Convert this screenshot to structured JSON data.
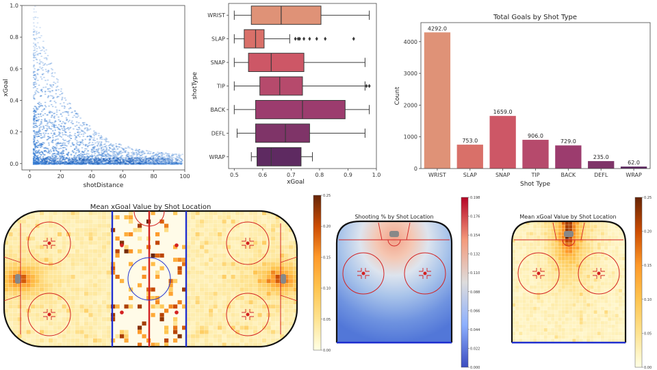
{
  "chart_data": [
    {
      "type": "scatter",
      "xlabel": "shotDistance",
      "ylabel": "xGoal",
      "xlim": [
        -5,
        100
      ],
      "ylim": [
        -0.04,
        1.0
      ],
      "xticks": [
        "0",
        "20",
        "40",
        "60",
        "80",
        "100"
      ],
      "yticks": [
        "0.0",
        "0.2",
        "0.4",
        "0.6",
        "0.8",
        "1.0"
      ],
      "color": "#3b7fd4",
      "description_of_density": "dense near distance 5-20 and xGoal 0-0.2, decaying with distance"
    },
    {
      "type": "bar",
      "subtype": "box",
      "xlabel": "xGoal",
      "ylabel": "shotType",
      "xlim": [
        0.48,
        1.0
      ],
      "xticks": [
        "0.5",
        "0.6",
        "0.7",
        "0.8",
        "0.9",
        "1.0"
      ],
      "categories": [
        "WRIST",
        "SLAP",
        "SNAP",
        "TIP",
        "BACK",
        "DEFL",
        "WRAP"
      ],
      "boxes": [
        {
          "name": "WRIST",
          "whislo": 0.5,
          "q1": 0.56,
          "med": 0.665,
          "q3": 0.805,
          "whishi": 0.975,
          "fliers": [],
          "color": "#df9277"
        },
        {
          "name": "SLAP",
          "whislo": 0.5,
          "q1": 0.535,
          "med": 0.575,
          "q3": 0.605,
          "whishi": 0.695,
          "fliers": [
            0.715,
            0.725,
            0.73,
            0.745,
            0.765,
            0.79,
            0.82,
            0.92
          ],
          "color": "#d97069"
        },
        {
          "name": "SNAP",
          "whislo": 0.5,
          "q1": 0.55,
          "med": 0.63,
          "q3": 0.745,
          "whishi": 0.96,
          "fliers": [],
          "color": "#cd5766"
        },
        {
          "name": "TIP",
          "whislo": 0.5,
          "q1": 0.59,
          "med": 0.66,
          "q3": 0.74,
          "whishi": 0.96,
          "fliers": [
            0.965,
            0.975
          ],
          "color": "#b64a6c"
        },
        {
          "name": "BACK",
          "whislo": 0.5,
          "q1": 0.575,
          "med": 0.74,
          "q3": 0.89,
          "whishi": 0.975,
          "fliers": [],
          "color": "#9c3c6e"
        },
        {
          "name": "DEFL",
          "whislo": 0.51,
          "q1": 0.575,
          "med": 0.68,
          "q3": 0.765,
          "whishi": 0.96,
          "fliers": [],
          "color": "#7f3468"
        },
        {
          "name": "WRAP",
          "whislo": 0.56,
          "q1": 0.58,
          "med": 0.63,
          "q3": 0.735,
          "whishi": 0.775,
          "fliers": [],
          "color": "#5e2a61"
        }
      ]
    },
    {
      "type": "bar",
      "title": "Total Goals by Shot Type",
      "xlabel": "Shot Type",
      "ylabel": "Count",
      "ylim": [
        0,
        4600
      ],
      "yticks": [
        "0",
        "1000",
        "2000",
        "3000",
        "4000"
      ],
      "categories": [
        "WRIST",
        "SLAP",
        "SNAP",
        "TIP",
        "BACK",
        "DEFL",
        "WRAP"
      ],
      "values": [
        4292,
        753,
        1659,
        906,
        729,
        235,
        62
      ],
      "value_labels": [
        "4292.0",
        "753.0",
        "1659.0",
        "906.0",
        "729.0",
        "235.0",
        "62.0"
      ],
      "colors": [
        "#df9277",
        "#d97069",
        "#cd5766",
        "#b64a6c",
        "#9c3c6e",
        "#7f3468",
        "#5e2a61"
      ]
    },
    {
      "type": "heatmap",
      "title": "Mean xGoal Value by Shot Location",
      "colormap": "YlOrBr",
      "colorbar_ticks": [
        "0.25",
        "0.20",
        "0.15",
        "0.10",
        "0.05",
        "0.00"
      ],
      "vmin": 0.0,
      "vmax": 0.25
    },
    {
      "type": "heatmap",
      "title": "Shooting % by Shot Location",
      "colormap": "coolwarm",
      "colorbar_ticks": [
        "0.198",
        "0.176",
        "0.154",
        "0.132",
        "0.110",
        "0.088",
        "0.066",
        "0.044",
        "0.022",
        "0.000"
      ],
      "vmin": 0.0,
      "vmax": 0.198
    },
    {
      "type": "heatmap",
      "title": "Mean xGoal Value by Shot Location",
      "colormap": "YlOrBr",
      "colorbar_ticks": [
        "0.25",
        "0.20",
        "0.15",
        "0.10",
        "0.05",
        "0.00"
      ],
      "vmin": 0.0,
      "vmax": 0.25
    }
  ]
}
